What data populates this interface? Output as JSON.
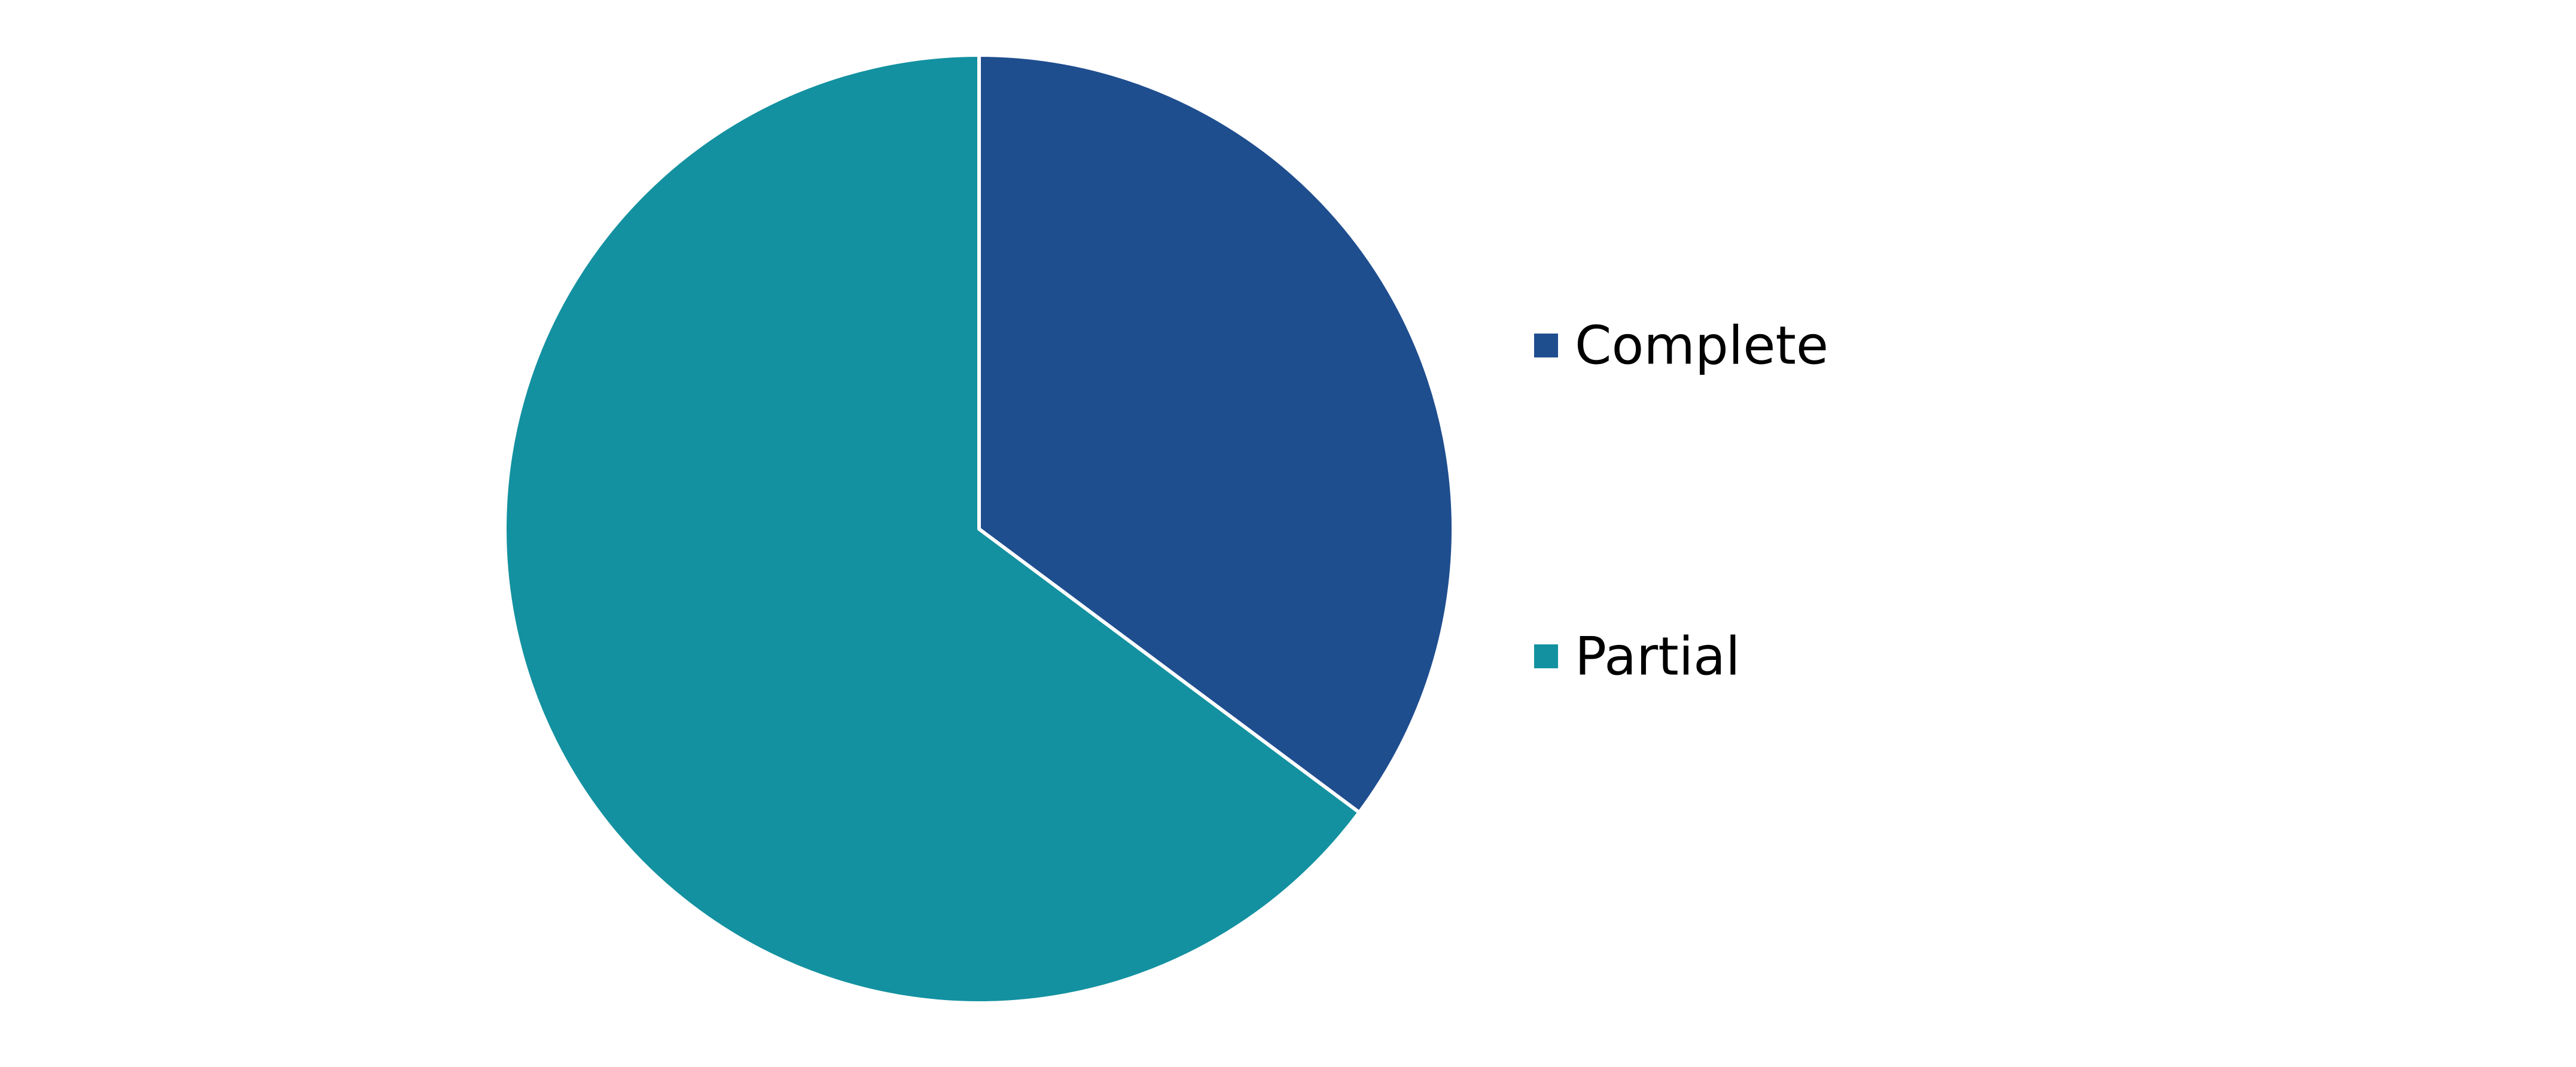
{
  "chart_data": {
    "type": "pie",
    "title": "",
    "start_angle": "12 o'clock",
    "direction": "clockwise",
    "legend": "right",
    "series": [
      {
        "name": "Complete",
        "value": 35.2,
        "color": "#1f4e8f"
      },
      {
        "name": "Partial",
        "value": 64.8,
        "color": "#1391a0"
      }
    ]
  }
}
